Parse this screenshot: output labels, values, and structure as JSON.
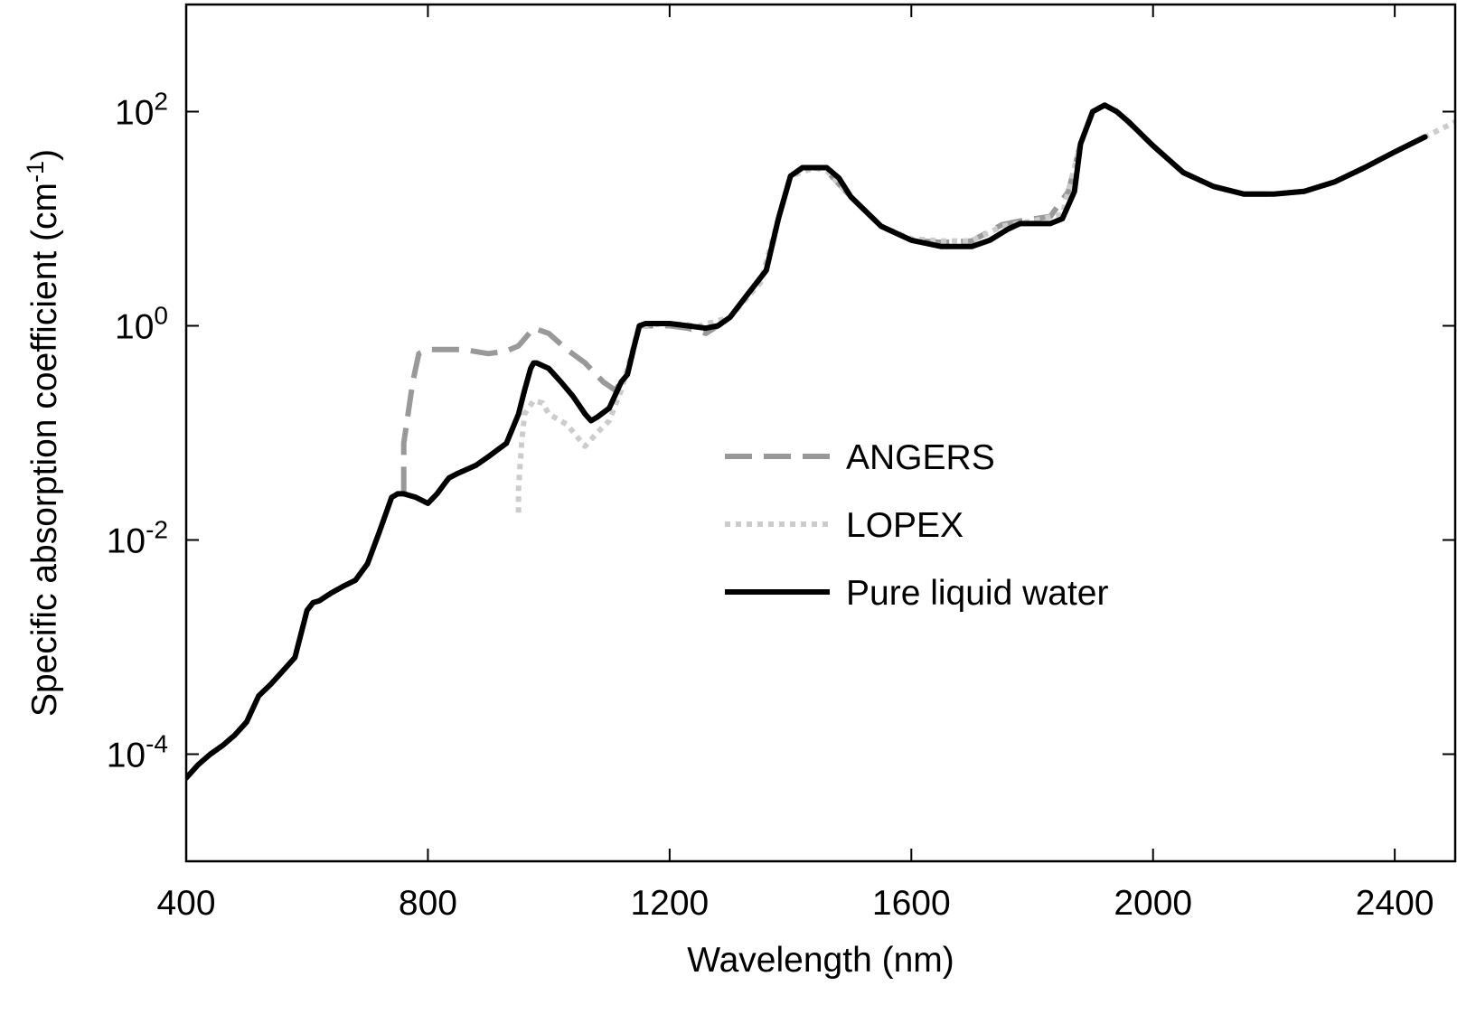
{
  "chart_data": {
    "type": "line",
    "xlabel": "Wavelength (nm)",
    "ylabel": "Specific absorption coefficient (cm",
    "ylabel_sup": "-1",
    "ylabel_close": ")",
    "xscale": "linear",
    "yscale": "log",
    "xlim": [
      400,
      2500
    ],
    "ylim": [
      1e-05,
      1000
    ],
    "x_ticks": [
      {
        "value": 400,
        "label": "400"
      },
      {
        "value": 800,
        "label": "800"
      },
      {
        "value": 1200,
        "label": "1200"
      },
      {
        "value": 1600,
        "label": "1600"
      },
      {
        "value": 2000,
        "label": "2000"
      },
      {
        "value": 2400,
        "label": "2400"
      }
    ],
    "y_ticks": [
      {
        "value": 0.0001,
        "base": "10",
        "exp": "-4"
      },
      {
        "value": 0.01,
        "base": "10",
        "exp": "-2"
      },
      {
        "value": 1,
        "base": "10",
        "exp": "0"
      },
      {
        "value": 100,
        "base": "10",
        "exp": "2"
      }
    ],
    "grid": false,
    "legend_position": "center-right",
    "series": [
      {
        "name": "ANGERS",
        "style": "dashed",
        "color": "#999999",
        "x": [
          760,
          760,
          775,
          785,
          800,
          860,
          900,
          930,
          950,
          975,
          1000,
          1030,
          1060,
          1090,
          1110,
          1130,
          1150,
          1165,
          1200,
          1230,
          1260,
          1280,
          1300,
          1330,
          1360,
          1380,
          1400,
          1420,
          1440,
          1460,
          1500,
          1550,
          1600,
          1650,
          1700,
          1750,
          1780,
          1830,
          1860,
          1880,
          1900,
          1920,
          1940,
          1970,
          2000,
          2050,
          2100,
          2150,
          2200,
          2250,
          2300,
          2350,
          2400,
          2450
        ],
        "y": [
          0.027,
          0.08,
          0.3,
          0.55,
          0.6,
          0.6,
          0.55,
          0.58,
          0.65,
          0.95,
          0.85,
          0.6,
          0.45,
          0.3,
          0.25,
          0.35,
          1.0,
          1.0,
          1.0,
          0.95,
          0.85,
          1.0,
          1.2,
          2.0,
          3.3,
          10,
          25,
          30,
          30,
          28,
          16,
          8.5,
          6.3,
          6,
          6.2,
          8.8,
          9.5,
          10.5,
          18,
          50,
          100,
          115,
          100,
          70,
          48,
          27,
          20,
          17,
          17,
          18,
          22,
          30,
          42,
          58
        ]
      },
      {
        "name": "LOPEX",
        "style": "dotted",
        "color": "#cccccc",
        "x": [
          950,
          950,
          955,
          960,
          975,
          990,
          1000,
          1030,
          1060,
          1080,
          1100,
          1120,
          1150,
          1200,
          1250,
          1300,
          1350,
          1400,
          1440,
          1460,
          1500,
          1550,
          1600,
          1650,
          1700,
          1750,
          1800,
          1850,
          1880,
          1900,
          1920,
          1940,
          1970,
          2000,
          2050,
          2100,
          2150,
          2200,
          2250,
          2300,
          2350,
          2400,
          2450,
          2500
        ],
        "y": [
          0.018,
          0.03,
          0.08,
          0.15,
          0.2,
          0.19,
          0.15,
          0.12,
          0.075,
          0.1,
          0.13,
          0.25,
          1.0,
          1.05,
          1.0,
          1.2,
          2.5,
          25,
          30,
          28,
          16,
          8.5,
          6.5,
          6.2,
          6.2,
          8.5,
          9.5,
          11,
          50,
          100,
          115,
          100,
          70,
          48,
          27,
          20,
          17,
          17,
          18,
          22,
          30,
          42,
          58,
          80
        ]
      },
      {
        "name": "Pure liquid water",
        "style": "solid",
        "color": "#000000",
        "x": [
          400,
          420,
          440,
          460,
          480,
          500,
          520,
          540,
          560,
          580,
          600,
          610,
          620,
          640,
          660,
          680,
          700,
          720,
          740,
          750,
          760,
          780,
          800,
          815,
          830,
          835,
          850,
          880,
          900,
          930,
          950,
          960,
          970,
          975,
          980,
          1000,
          1020,
          1040,
          1060,
          1070,
          1080,
          1100,
          1120,
          1130,
          1140,
          1150,
          1160,
          1200,
          1230,
          1260,
          1280,
          1300,
          1330,
          1360,
          1380,
          1400,
          1420,
          1440,
          1460,
          1480,
          1500,
          1550,
          1600,
          1650,
          1700,
          1730,
          1760,
          1780,
          1800,
          1830,
          1850,
          1870,
          1880,
          1900,
          1920,
          1940,
          1960,
          2000,
          2050,
          2100,
          2150,
          2200,
          2250,
          2300,
          2350,
          2400,
          2450
        ],
        "y": [
          6e-05,
          8e-05,
          0.0001,
          0.00012,
          0.00015,
          0.0002,
          0.00035,
          0.00045,
          0.0006,
          0.0008,
          0.0022,
          0.0026,
          0.0027,
          0.0032,
          0.0037,
          0.0042,
          0.006,
          0.012,
          0.025,
          0.027,
          0.027,
          0.025,
          0.022,
          0.027,
          0.035,
          0.038,
          0.042,
          0.05,
          0.06,
          0.08,
          0.15,
          0.25,
          0.4,
          0.45,
          0.45,
          0.4,
          0.3,
          0.22,
          0.15,
          0.13,
          0.14,
          0.17,
          0.3,
          0.35,
          0.6,
          1.0,
          1.05,
          1.05,
          1.0,
          0.95,
          1.0,
          1.2,
          2.0,
          3.3,
          10,
          25,
          30,
          30,
          30,
          24,
          16,
          8.5,
          6.3,
          5.5,
          5.5,
          6.3,
          8,
          9,
          9,
          9,
          10,
          18,
          50,
          100,
          115,
          100,
          80,
          48,
          27,
          20,
          17,
          17,
          18,
          22,
          30,
          42,
          58
        ]
      }
    ]
  }
}
